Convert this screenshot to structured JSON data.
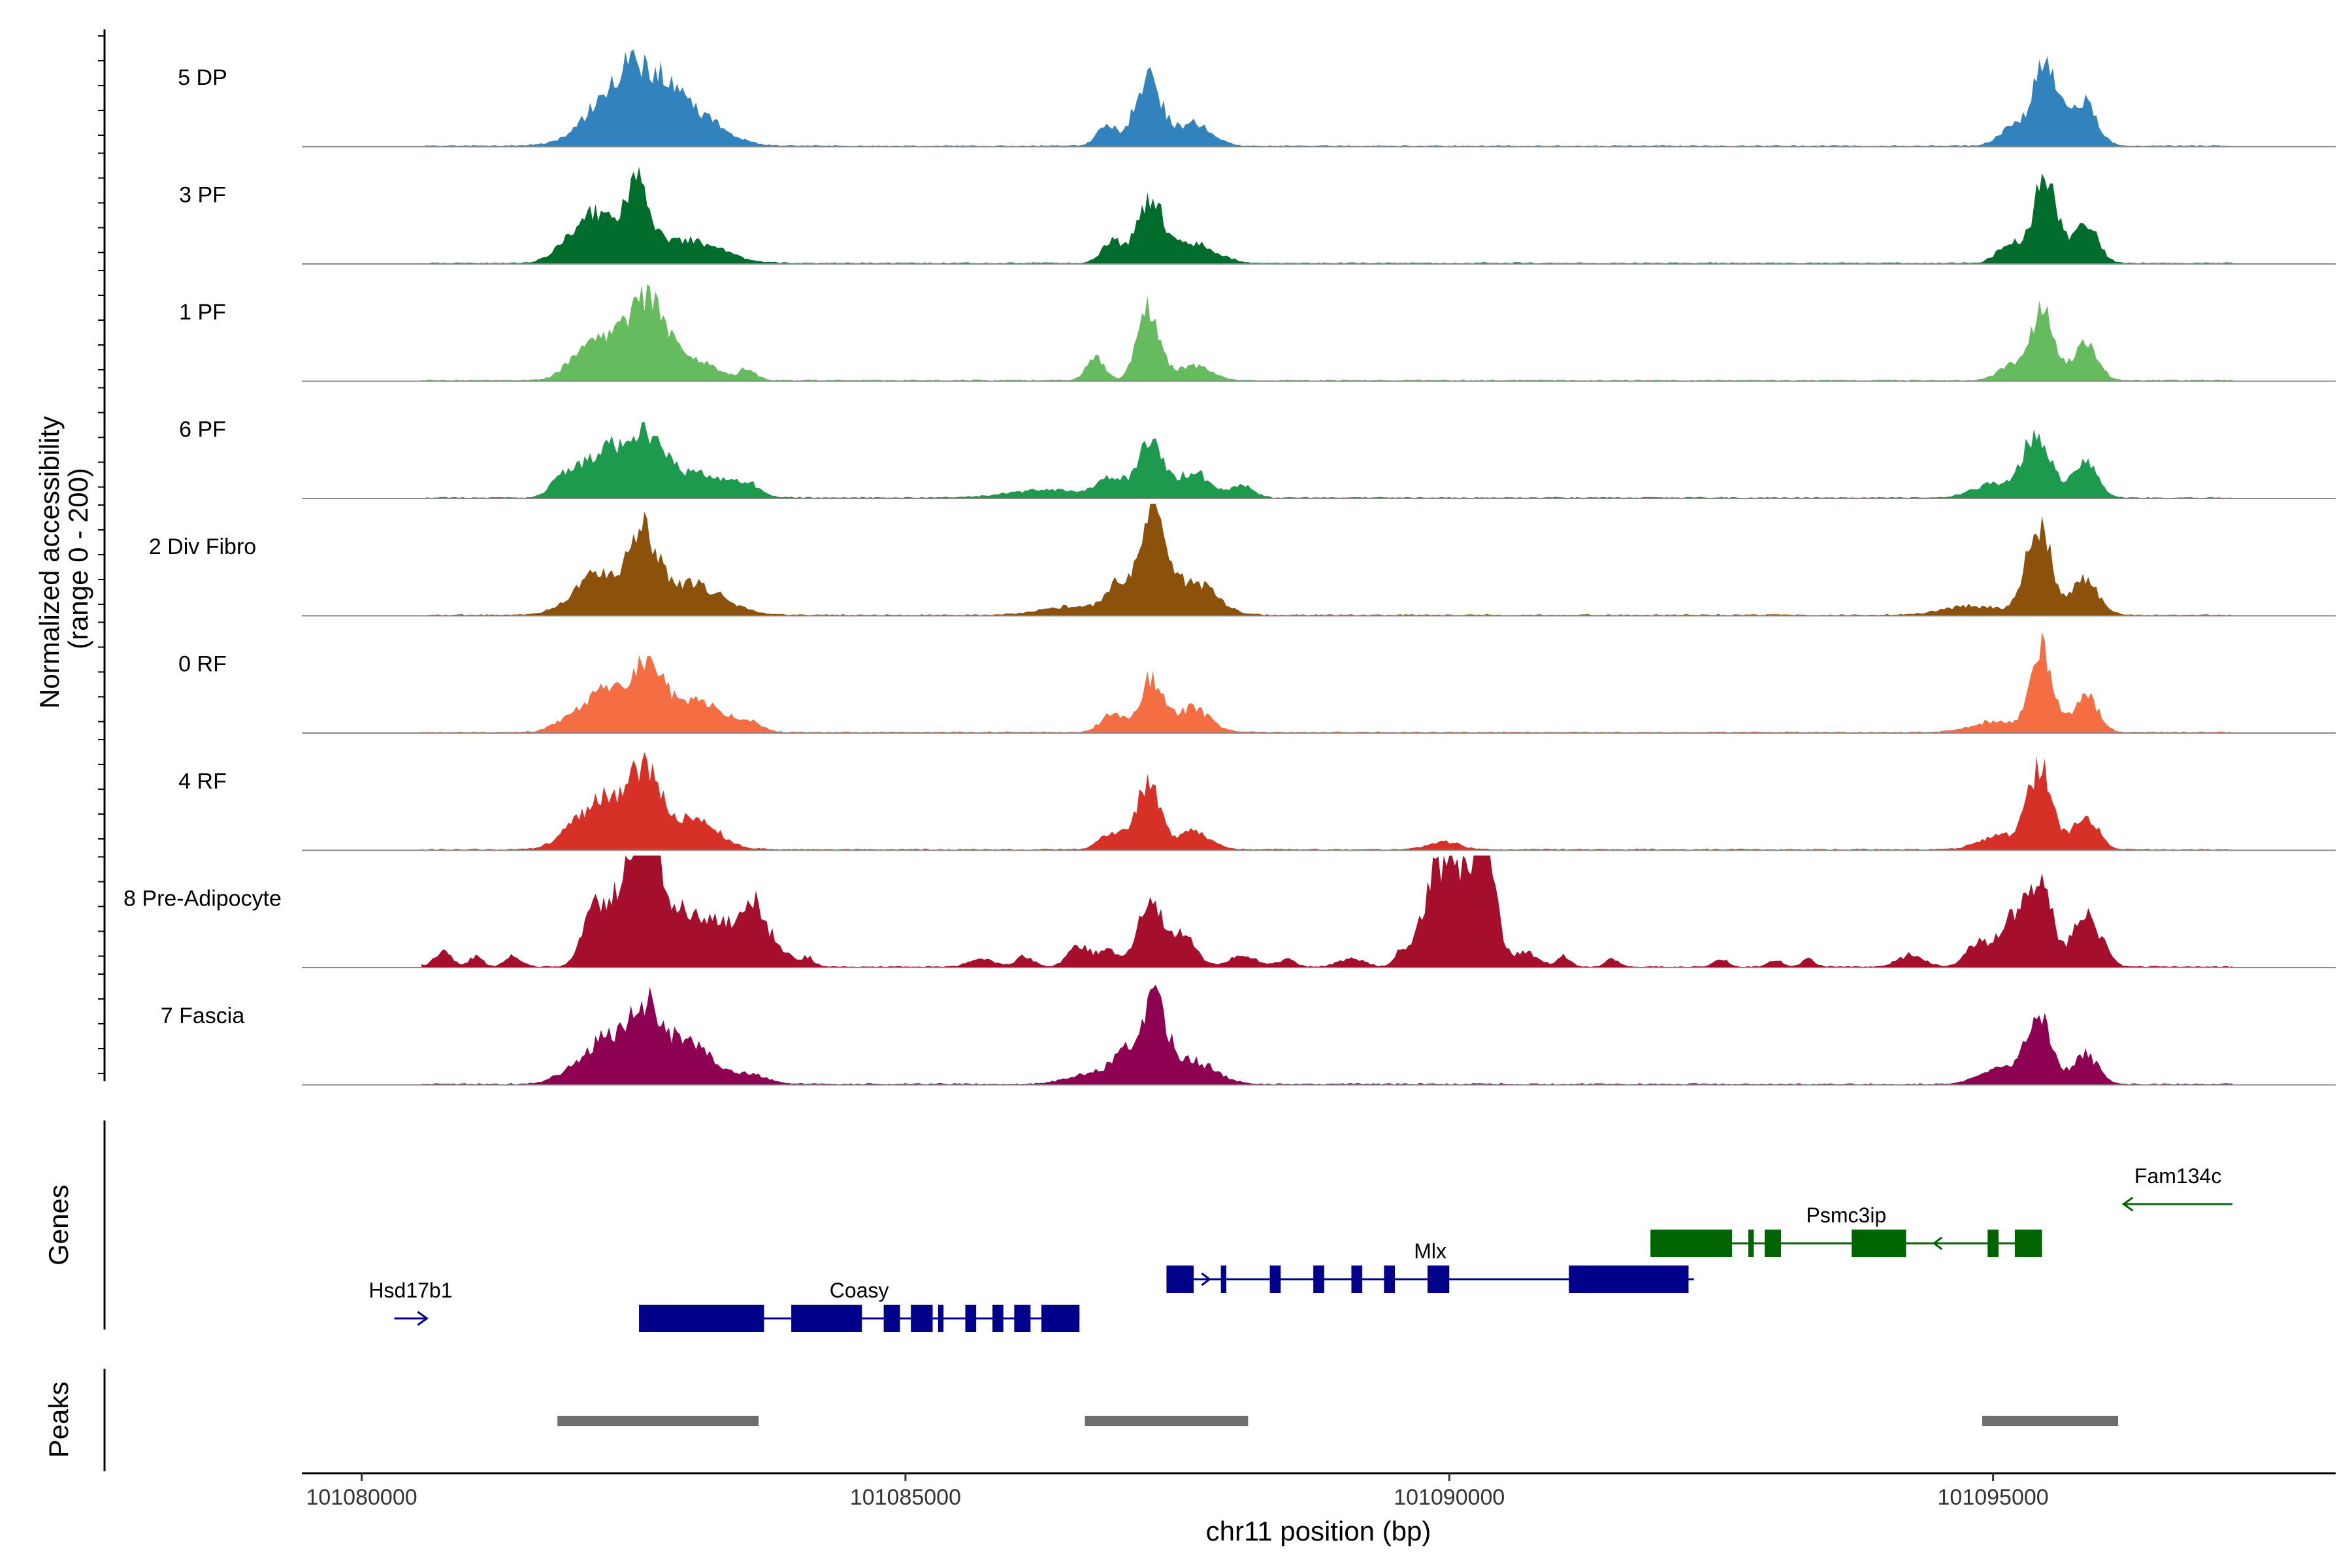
{
  "chart_data": {
    "type": "area",
    "title": "",
    "chromosome": "chr11",
    "xlabel": "chr11 position (bp)",
    "ylabel_lines": [
      "Normalized accessibility",
      "(range 0 - 200)"
    ],
    "y_range": [
      0,
      200
    ],
    "xlim": [
      101079450,
      101098150
    ],
    "x_ticks": [
      101080000,
      101085000,
      101090000,
      101095000
    ],
    "x_tick_labels": [
      "101080000",
      "101085000",
      "101090000",
      "101095000"
    ],
    "peak_centers": [
      101082500,
      101087300,
      101095500
    ],
    "tracks": [
      {
        "name": "5 DP",
        "color": "#3182bd",
        "peaks": [
          [
            101082450,
            96,
            300
          ],
          [
            101082850,
            38,
            250
          ],
          [
            101083200,
            18,
            220
          ],
          [
            101086850,
            28,
            90
          ],
          [
            101087230,
            90,
            120
          ],
          [
            101087650,
            30,
            160
          ],
          [
            101095150,
            22,
            110
          ],
          [
            101095480,
            116,
            120
          ],
          [
            101095850,
            56,
            110
          ]
        ],
        "extra": []
      },
      {
        "name": "3 PF",
        "color": "#006d2c",
        "peaks": [
          [
            101081950,
            22,
            160
          ],
          [
            101082200,
            58,
            200
          ],
          [
            101082550,
            88,
            110
          ],
          [
            101083000,
            30,
            300
          ],
          [
            101086900,
            28,
            100
          ],
          [
            101087250,
            80,
            120
          ],
          [
            101087650,
            26,
            200
          ],
          [
            101095150,
            26,
            110
          ],
          [
            101095480,
            112,
            110
          ],
          [
            101095850,
            54,
            110
          ]
        ],
        "extra": []
      },
      {
        "name": "1 PF",
        "color": "#66bb5f",
        "peaks": [
          [
            101081950,
            14,
            120
          ],
          [
            101082300,
            60,
            220
          ],
          [
            101082650,
            92,
            150
          ],
          [
            101083050,
            28,
            200
          ],
          [
            101083550,
            14,
            80
          ],
          [
            101086750,
            30,
            80
          ],
          [
            101087230,
            96,
            100
          ],
          [
            101087650,
            20,
            160
          ],
          [
            101095150,
            18,
            110
          ],
          [
            101095450,
            92,
            110
          ],
          [
            101095850,
            48,
            110
          ]
        ],
        "extra": []
      },
      {
        "name": "6 PF",
        "color": "#1d9a4e",
        "peaks": [
          [
            101081850,
            24,
            110
          ],
          [
            101082200,
            58,
            180
          ],
          [
            101082600,
            74,
            180
          ],
          [
            101083100,
            30,
            280
          ],
          [
            101083550,
            14,
            100
          ],
          [
            101086300,
            10,
            350
          ],
          [
            101086900,
            26,
            120
          ],
          [
            101087250,
            72,
            110
          ],
          [
            101087650,
            34,
            160
          ],
          [
            101088100,
            16,
            100
          ],
          [
            101095000,
            18,
            180
          ],
          [
            101095400,
            84,
            130
          ],
          [
            101095850,
            48,
            110
          ]
        ],
        "extra": []
      },
      {
        "name": "2 Div Fibro",
        "color": "#8c510a",
        "peaks": [
          [
            101081950,
            14,
            180
          ],
          [
            101082200,
            48,
            180
          ],
          [
            101082580,
            96,
            130
          ],
          [
            101083000,
            42,
            300
          ],
          [
            101086600,
            12,
            300
          ],
          [
            101086950,
            38,
            100
          ],
          [
            101087270,
            118,
            120
          ],
          [
            101087650,
            44,
            200
          ],
          [
            101094800,
            12,
            250
          ],
          [
            101095420,
            114,
            120
          ],
          [
            101095850,
            46,
            120
          ]
        ],
        "extra": []
      },
      {
        "name": "0 RF",
        "color": "#f46d43",
        "peaks": [
          [
            101081950,
            20,
            160
          ],
          [
            101082300,
            56,
            180
          ],
          [
            101082650,
            84,
            150
          ],
          [
            101083100,
            38,
            220
          ],
          [
            101083550,
            12,
            120
          ],
          [
            101086900,
            26,
            100
          ],
          [
            101087260,
            70,
            110
          ],
          [
            101087650,
            32,
            150
          ],
          [
            101095000,
            14,
            200
          ],
          [
            101095440,
            118,
            100
          ],
          [
            101095850,
            50,
            110
          ]
        ],
        "extra": []
      },
      {
        "name": "4 RF",
        "color": "#d73027",
        "peaks": [
          [
            101081950,
            22,
            160
          ],
          [
            101082250,
            62,
            180
          ],
          [
            101082600,
            100,
            140
          ],
          [
            101083050,
            40,
            220
          ],
          [
            101086900,
            22,
            110
          ],
          [
            101087230,
            86,
            110
          ],
          [
            101087650,
            24,
            150
          ],
          [
            101089950,
            10,
            150
          ],
          [
            101095050,
            18,
            180
          ],
          [
            101095430,
            108,
            110
          ],
          [
            101095850,
            46,
            110
          ]
        ],
        "extra": []
      },
      {
        "name": "8 Pre-Adipocyte",
        "color": "#a50f2b",
        "peaks": [
          [
            101080380,
            24,
            70
          ],
          [
            101080750,
            20,
            80
          ],
          [
            101081050,
            14,
            60
          ],
          [
            101081400,
            14,
            80
          ],
          [
            101082150,
            82,
            110
          ],
          [
            101082500,
            156,
            140
          ],
          [
            101082650,
            130,
            80
          ],
          [
            101082900,
            70,
            160
          ],
          [
            101083300,
            56,
            200
          ],
          [
            101083600,
            66,
            100
          ],
          [
            101083800,
            26,
            120
          ],
          [
            101084100,
            12,
            60
          ],
          [
            101085700,
            10,
            120
          ],
          [
            101086100,
            14,
            80
          ],
          [
            101086600,
            28,
            100
          ],
          [
            101086850,
            22,
            80
          ],
          [
            101087250,
            86,
            120
          ],
          [
            101087550,
            40,
            120
          ],
          [
            101088100,
            16,
            120
          ],
          [
            101088500,
            10,
            80
          ],
          [
            101089100,
            10,
            120
          ],
          [
            101089550,
            18,
            60
          ],
          [
            101089850,
            96,
            120
          ],
          [
            101090100,
            126,
            140
          ],
          [
            101090350,
            140,
            90
          ],
          [
            101090700,
            18,
            120
          ],
          [
            101091050,
            14,
            60
          ],
          [
            101091500,
            10,
            60
          ],
          [
            101092500,
            10,
            60
          ],
          [
            101093000,
            10,
            60
          ],
          [
            101093300,
            10,
            60
          ],
          [
            101094250,
            16,
            120
          ],
          [
            101094850,
            30,
            100
          ],
          [
            101095150,
            56,
            120
          ],
          [
            101095420,
            114,
            120
          ],
          [
            101095850,
            70,
            110
          ],
          [
            101096050,
            16,
            60
          ]
        ],
        "extra": []
      },
      {
        "name": "7 Fascia",
        "color": "#8e0152",
        "peaks": [
          [
            101081950,
            18,
            160
          ],
          [
            101082250,
            56,
            150
          ],
          [
            101082600,
            94,
            150
          ],
          [
            101083000,
            52,
            250
          ],
          [
            101083600,
            10,
            150
          ],
          [
            101086700,
            14,
            200
          ],
          [
            101087000,
            32,
            120
          ],
          [
            101087280,
            106,
            120
          ],
          [
            101087650,
            30,
            200
          ],
          [
            101095050,
            20,
            180
          ],
          [
            101095420,
            88,
            120
          ],
          [
            101095850,
            40,
            110
          ]
        ],
        "extra": []
      }
    ],
    "genes_track_label": "Genes",
    "peaks_track_label": "Peaks",
    "genes": [
      {
        "name": "Hsd17b1",
        "strand": "+",
        "color": "#00008b",
        "row": 0,
        "start": 101080300,
        "end": 101080600,
        "exons": []
      },
      {
        "name": "Coasy",
        "strand": "+",
        "color": "#00008b",
        "row": 0,
        "start": 101082550,
        "end": 101086600,
        "exons": [
          [
            101082550,
            101083700
          ],
          [
            101083950,
            101084600
          ],
          [
            101084800,
            101084950
          ],
          [
            101085050,
            101085250
          ],
          [
            101085300,
            101085350
          ],
          [
            101085550,
            101085650
          ],
          [
            101085800,
            101085900
          ],
          [
            101086000,
            101086150
          ],
          [
            101086250,
            101086600
          ]
        ]
      },
      {
        "name": "Mlx",
        "strand": "+",
        "color": "#00008b",
        "row": 1,
        "start": 101087400,
        "end": 101092250,
        "exons": [
          [
            101087400,
            101087650
          ],
          [
            101087900,
            101087950
          ],
          [
            101088350,
            101088450
          ],
          [
            101088750,
            101088850
          ],
          [
            101089100,
            101089200
          ],
          [
            101089400,
            101089500
          ],
          [
            101089800,
            101090000
          ],
          [
            101091100,
            101092200
          ]
        ]
      },
      {
        "name": "Psmc3ip",
        "strand": "-",
        "color": "#006400",
        "row": 2,
        "start": 101091850,
        "end": 101095450,
        "exons": [
          [
            101091850,
            101092600
          ],
          [
            101092750,
            101092800
          ],
          [
            101092900,
            101093050
          ],
          [
            101093700,
            101094200
          ],
          [
            101094950,
            101095050
          ],
          [
            101095200,
            101095450
          ]
        ]
      },
      {
        "name": "Fam134c",
        "strand": "-",
        "color": "#006400",
        "row": 3,
        "start": 101096200,
        "end": 101097200,
        "exons": []
      }
    ],
    "peaks": [
      [
        101081800,
        101083650
      ],
      [
        101086650,
        101088150
      ],
      [
        101094900,
        101096150
      ]
    ]
  }
}
